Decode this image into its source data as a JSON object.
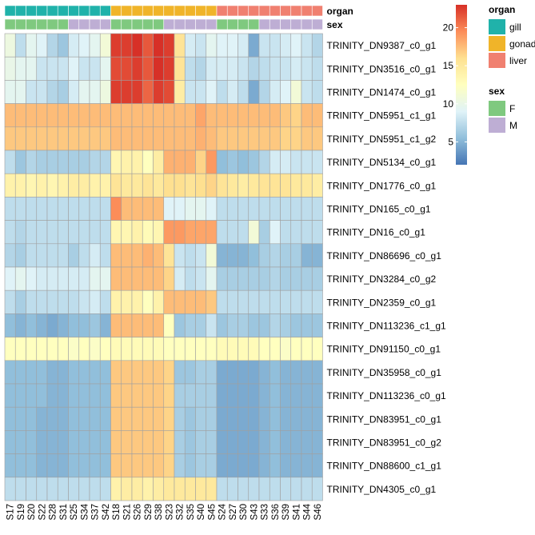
{
  "chart_data": {
    "type": "heatmap",
    "columns": [
      "S17",
      "S19",
      "S20",
      "S22",
      "S28",
      "S31",
      "S25",
      "S34",
      "S37",
      "S42",
      "S18",
      "S21",
      "S26",
      "S29",
      "S38",
      "S23",
      "S32",
      "S35",
      "S40",
      "S45",
      "S24",
      "S27",
      "S30",
      "S43",
      "S33",
      "S36",
      "S39",
      "S41",
      "S44",
      "S46"
    ],
    "rows": [
      "TRINITY_DN9387_c0_g1",
      "TRINITY_DN3516_c0_g1",
      "TRINITY_DN1474_c0_g1",
      "TRINITY_DN5951_c1_g1",
      "TRINITY_DN5951_c1_g2",
      "TRINITY_DN5134_c0_g1",
      "TRINITY_DN1776_c0_g1",
      "TRINITY_DN165_c0_g1",
      "TRINITY_DN16_c0_g1",
      "TRINITY_DN86696_c0_g1",
      "TRINITY_DN3284_c0_g2",
      "TRINITY_DN2359_c0_g1",
      "TRINITY_DN113236_c1_g1",
      "TRINITY_DN91150_c0_g1",
      "TRINITY_DN35958_c0_g1",
      "TRINITY_DN113236_c0_g1",
      "TRINITY_DN83951_c0_g1",
      "TRINITY_DN83951_c0_g2",
      "TRINITY_DN88600_c1_g1",
      "TRINITY_DN4305_c0_g1"
    ],
    "annotations": {
      "organ": [
        "gill",
        "gill",
        "gill",
        "gill",
        "gill",
        "gill",
        "gill",
        "gill",
        "gill",
        "gill",
        "gonad",
        "gonad",
        "gonad",
        "gonad",
        "gonad",
        "gonad",
        "gonad",
        "gonad",
        "gonad",
        "gonad",
        "liver",
        "liver",
        "liver",
        "liver",
        "liver",
        "liver",
        "liver",
        "liver",
        "liver",
        "liver"
      ],
      "sex": [
        "F",
        "F",
        "F",
        "F",
        "F",
        "F",
        "M",
        "M",
        "M",
        "M",
        "F",
        "F",
        "F",
        "F",
        "F",
        "M",
        "M",
        "M",
        "M",
        "M",
        "F",
        "F",
        "F",
        "F",
        "M",
        "M",
        "M",
        "M",
        "M",
        "M"
      ]
    },
    "annotation_labels": {
      "organ": "organ",
      "sex": "sex"
    },
    "values": [
      [
        10.5,
        7.5,
        9.5,
        9.0,
        7.0,
        6.0,
        8.5,
        9.0,
        9.5,
        11.0,
        22.5,
        22.5,
        23.0,
        21.5,
        23.5,
        22.5,
        15.5,
        8.5,
        8.0,
        9.5,
        9.0,
        9.0,
        8.5,
        4.5,
        8.0,
        8.0,
        8.5,
        9.0,
        8.0,
        7.0
      ],
      [
        10.0,
        9.5,
        9.5,
        8.0,
        8.0,
        8.0,
        9.0,
        8.0,
        8.0,
        9.5,
        22.0,
        22.0,
        22.5,
        21.5,
        23.0,
        22.5,
        15.5,
        7.5,
        7.0,
        8.5,
        8.5,
        8.5,
        8.0,
        7.0,
        7.5,
        8.0,
        8.0,
        8.5,
        8.0,
        7.5
      ],
      [
        9.5,
        9.5,
        8.0,
        8.0,
        7.0,
        6.5,
        8.5,
        9.5,
        9.5,
        10.5,
        22.5,
        22.5,
        22.5,
        21.0,
        22.5,
        22.0,
        14.5,
        8.0,
        8.0,
        9.0,
        7.5,
        8.5,
        7.5,
        4.5,
        7.0,
        8.5,
        9.0,
        11.0,
        8.0,
        7.5
      ],
      [
        17.5,
        17.5,
        17.5,
        17.5,
        17.5,
        17.5,
        17.5,
        17.5,
        17.5,
        17.5,
        17.5,
        17.5,
        17.5,
        17.5,
        17.5,
        17.5,
        17.5,
        17.5,
        18.5,
        17.5,
        17.5,
        17.5,
        17.5,
        17.5,
        17.5,
        17.5,
        17.0,
        16.5,
        17.5,
        17.5
      ],
      [
        17.0,
        17.0,
        17.0,
        17.0,
        17.0,
        17.0,
        17.0,
        17.0,
        17.0,
        17.0,
        17.5,
        17.5,
        17.5,
        17.5,
        17.5,
        17.5,
        17.5,
        17.5,
        18.0,
        17.5,
        17.0,
        17.0,
        17.0,
        17.0,
        17.0,
        17.0,
        16.5,
        16.5,
        17.0,
        17.0
      ],
      [
        7.5,
        6.0,
        7.0,
        6.5,
        6.5,
        6.5,
        6.5,
        6.5,
        7.0,
        7.0,
        13.5,
        14.0,
        14.0,
        12.5,
        14.5,
        18.0,
        18.0,
        18.0,
        16.5,
        19.0,
        5.5,
        6.0,
        5.5,
        6.0,
        7.0,
        8.5,
        8.5,
        8.0,
        8.0,
        8.0
      ],
      [
        14.0,
        14.0,
        13.5,
        14.0,
        13.5,
        14.0,
        14.5,
        14.5,
        14.0,
        14.0,
        15.5,
        15.0,
        15.0,
        15.5,
        15.0,
        16.0,
        16.0,
        15.5,
        16.0,
        16.5,
        15.5,
        15.0,
        14.5,
        15.0,
        15.5,
        15.5,
        15.5,
        15.0,
        15.0,
        14.5
      ],
      [
        7.5,
        7.5,
        7.5,
        7.5,
        7.5,
        7.5,
        7.5,
        7.5,
        7.5,
        7.5,
        19.5,
        17.5,
        17.5,
        17.5,
        17.5,
        9.0,
        9.0,
        9.5,
        9.5,
        9.0,
        7.5,
        7.5,
        7.5,
        7.5,
        7.5,
        7.5,
        7.5,
        7.5,
        7.5,
        7.5
      ],
      [
        7.5,
        7.0,
        7.5,
        7.5,
        7.5,
        7.5,
        7.5,
        7.5,
        7.5,
        7.5,
        13.5,
        13.5,
        14.0,
        13.0,
        13.5,
        19.0,
        19.0,
        18.5,
        18.5,
        18.5,
        7.5,
        7.5,
        7.5,
        11.0,
        6.5,
        9.0,
        7.5,
        7.5,
        7.5,
        7.5
      ],
      [
        7.0,
        6.5,
        7.5,
        7.5,
        7.5,
        7.5,
        6.5,
        7.5,
        8.5,
        7.5,
        17.5,
        17.5,
        17.5,
        18.0,
        17.5,
        15.5,
        8.0,
        7.5,
        8.0,
        11.0,
        5.0,
        5.0,
        5.0,
        5.5,
        6.5,
        7.0,
        6.5,
        6.5,
        5.0,
        5.0
      ],
      [
        9.0,
        9.5,
        9.0,
        8.5,
        8.5,
        8.5,
        8.5,
        8.5,
        9.5,
        9.5,
        17.5,
        17.5,
        17.5,
        17.5,
        17.5,
        16.5,
        8.5,
        7.5,
        8.0,
        9.5,
        6.5,
        6.5,
        6.5,
        6.5,
        6.5,
        7.0,
        6.5,
        6.5,
        6.5,
        6.5
      ],
      [
        7.5,
        6.5,
        7.5,
        7.5,
        7.5,
        7.5,
        7.5,
        8.0,
        8.5,
        7.5,
        14.0,
        14.0,
        14.0,
        12.5,
        14.0,
        17.5,
        17.5,
        17.5,
        17.5,
        17.0,
        7.5,
        7.5,
        7.5,
        7.5,
        7.5,
        7.5,
        7.5,
        7.5,
        7.5,
        7.5
      ],
      [
        5.5,
        5.0,
        5.5,
        5.0,
        4.5,
        5.0,
        5.5,
        5.5,
        6.0,
        5.0,
        17.5,
        17.5,
        17.5,
        17.5,
        17.5,
        12.5,
        6.0,
        6.5,
        6.5,
        8.0,
        6.0,
        6.5,
        6.5,
        6.0,
        6.0,
        7.0,
        6.5,
        6.0,
        6.0,
        6.0
      ],
      [
        12.5,
        12.5,
        12.5,
        12.5,
        12.5,
        12.5,
        12.0,
        12.5,
        12.0,
        12.5,
        13.0,
        13.0,
        13.0,
        13.0,
        13.0,
        12.5,
        12.5,
        12.5,
        12.5,
        12.5,
        13.0,
        13.0,
        13.0,
        13.0,
        12.5,
        12.5,
        12.0,
        12.5,
        12.5,
        12.5
      ],
      [
        5.5,
        5.5,
        5.5,
        5.5,
        5.0,
        5.0,
        5.5,
        5.5,
        5.5,
        5.5,
        17.0,
        17.0,
        17.0,
        17.0,
        17.0,
        16.5,
        6.0,
        6.0,
        6.5,
        6.5,
        4.5,
        4.5,
        4.5,
        4.5,
        5.0,
        5.5,
        5.0,
        5.0,
        5.0,
        5.0
      ],
      [
        5.5,
        5.5,
        5.5,
        5.5,
        5.0,
        5.0,
        5.5,
        5.5,
        5.5,
        5.5,
        17.0,
        17.0,
        17.0,
        17.0,
        17.0,
        16.5,
        6.5,
        6.5,
        6.5,
        6.5,
        4.5,
        4.5,
        4.5,
        4.5,
        5.0,
        5.5,
        5.0,
        5.0,
        5.0,
        5.0
      ],
      [
        5.5,
        5.5,
        5.5,
        5.0,
        5.0,
        5.0,
        5.5,
        5.5,
        5.5,
        5.5,
        17.0,
        17.0,
        17.0,
        17.0,
        17.0,
        16.5,
        6.5,
        6.0,
        6.5,
        6.5,
        4.5,
        4.5,
        4.5,
        4.5,
        5.0,
        5.5,
        5.0,
        5.0,
        5.0,
        5.0
      ],
      [
        5.5,
        5.5,
        5.5,
        5.0,
        5.0,
        5.0,
        5.5,
        5.5,
        5.5,
        5.5,
        17.0,
        17.0,
        17.0,
        17.0,
        17.0,
        16.5,
        6.5,
        6.0,
        6.5,
        6.5,
        4.5,
        4.5,
        4.5,
        4.5,
        5.0,
        5.5,
        5.0,
        5.0,
        5.0,
        5.0
      ],
      [
        5.5,
        5.5,
        5.5,
        5.0,
        5.0,
        5.0,
        5.5,
        5.5,
        5.5,
        5.5,
        17.0,
        17.0,
        17.0,
        17.0,
        17.0,
        16.5,
        6.5,
        6.0,
        6.5,
        6.5,
        4.5,
        4.5,
        4.5,
        4.5,
        5.0,
        5.5,
        5.0,
        5.0,
        5.0,
        5.0
      ],
      [
        7.5,
        7.5,
        7.5,
        7.5,
        7.5,
        7.5,
        7.5,
        7.5,
        7.5,
        7.5,
        14.0,
        14.5,
        14.5,
        14.0,
        14.5,
        15.0,
        15.0,
        15.0,
        15.0,
        15.0,
        7.5,
        7.5,
        7.5,
        7.5,
        7.5,
        7.5,
        7.5,
        7.5,
        7.5,
        7.5
      ]
    ],
    "color_scale": {
      "domain": [
        2,
        23
      ],
      "ticks": [
        5,
        10,
        15,
        20
      ],
      "colors": [
        "#4575b4",
        "#91bfdb",
        "#e0f3f8",
        "#ffffbf",
        "#fee090",
        "#fc8d59",
        "#d73027"
      ]
    },
    "legends": {
      "organ": {
        "title": "organ",
        "items": [
          {
            "label": "gill",
            "color": "#20b2aa"
          },
          {
            "label": "gonad",
            "color": "#f0b429"
          },
          {
            "label": "liver",
            "color": "#f08070"
          }
        ]
      },
      "sex": {
        "title": "sex",
        "items": [
          {
            "label": "F",
            "color": "#7fc97f"
          },
          {
            "label": "M",
            "color": "#beaed4"
          }
        ]
      }
    }
  }
}
